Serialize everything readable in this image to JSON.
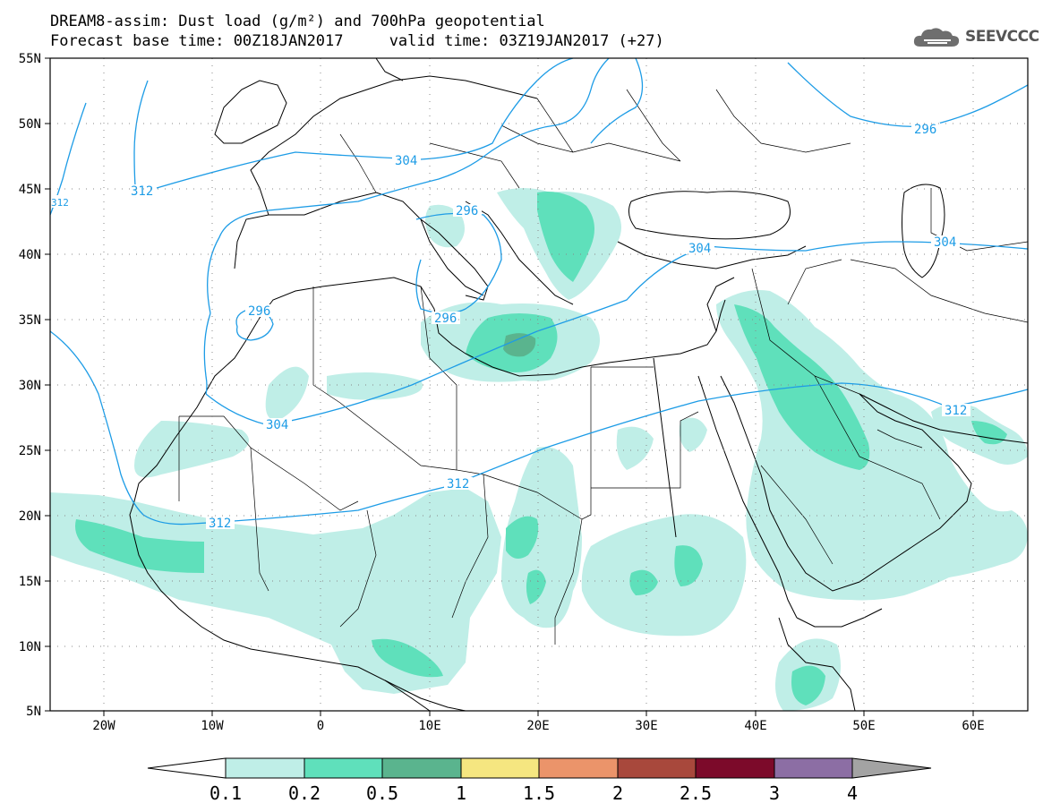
{
  "title_line1": "DREAM8-assim: Dust load (g/m²) and 700hPa geopotential",
  "title_line2": "Forecast base time: 00Z18JAN2017     valid time: 03Z19JAN2017 (+27)",
  "logo": {
    "text": "SEEVCCC",
    "icon": "cloud-icon"
  },
  "map": {
    "lon_range": [
      -25,
      65
    ],
    "lat_range": [
      5,
      55
    ],
    "lat_labels": [
      "55N",
      "50N",
      "45N",
      "40N",
      "35N",
      "30N",
      "25N",
      "20N",
      "15N",
      "10N",
      "5N"
    ],
    "lon_labels": [
      "20W",
      "10W",
      "0",
      "10E",
      "20E",
      "30E",
      "40E",
      "50E",
      "60E"
    ],
    "contour_labels": [
      "312",
      "304",
      "296",
      "296",
      "296",
      "304",
      "304",
      "312",
      "312",
      "312",
      "304",
      "312",
      "296",
      "304",
      "296"
    ]
  },
  "colorbar": {
    "levels": [
      "0.1",
      "0.2",
      "0.5",
      "1",
      "1.5",
      "2",
      "2.5",
      "3",
      "4"
    ],
    "colors": [
      "#ffffff",
      "#bfeee7",
      "#5fe0bb",
      "#5ab48e",
      "#f5e680",
      "#eb946a",
      "#a8483c",
      "#7c0a2a",
      "#8c6ea4",
      "#a3a3a3"
    ]
  },
  "colors": {
    "dust_light": "#bfeee7",
    "dust_medium": "#5fe0bb",
    "dust_dark": "#5ab48e",
    "contour": "#1d9ce6"
  }
}
